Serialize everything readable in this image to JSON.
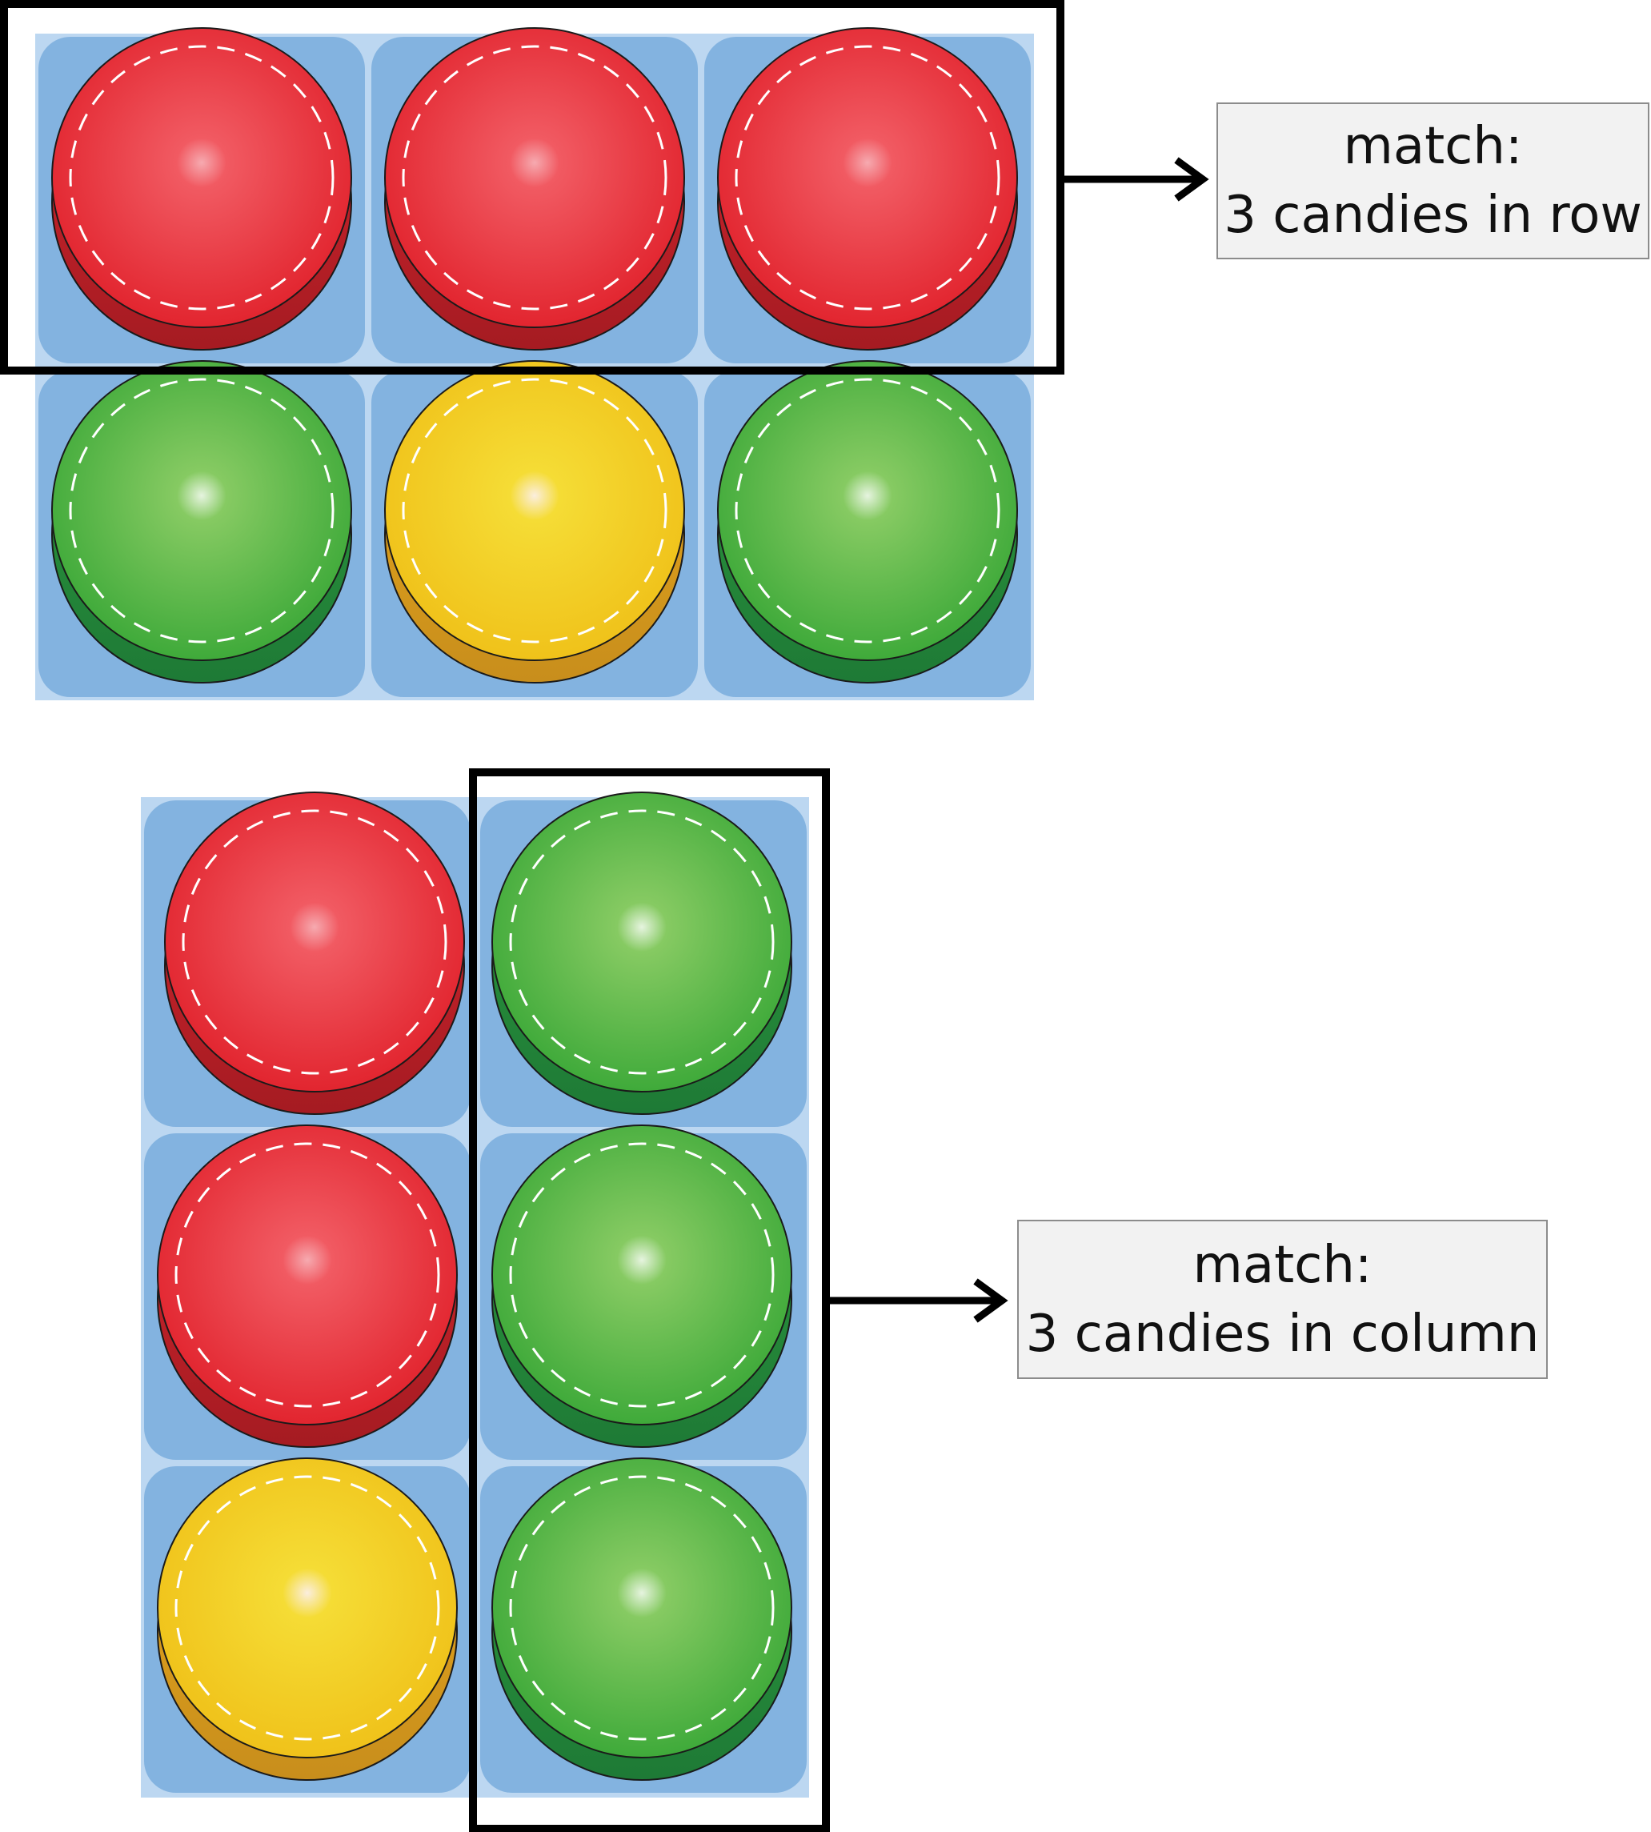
{
  "colors": {
    "board_background": "#bcd7f1",
    "cell": "#83b3e0",
    "frame": "#000000",
    "red": "#ee3b43",
    "green": "#5cbd45",
    "yellow": "#f2d41f"
  },
  "row_example": {
    "board": [
      [
        "red",
        "red",
        "red"
      ],
      [
        "green",
        "yellow",
        "green"
      ]
    ],
    "highlight": "row 1",
    "label": {
      "line1": "match:",
      "line2": "3 candies in row"
    }
  },
  "column_example": {
    "board": [
      [
        "red",
        "green"
      ],
      [
        "red",
        "green"
      ],
      [
        "yellow",
        "green"
      ]
    ],
    "highlight": "column 2",
    "label": {
      "line1": "match:",
      "line2": "3 candies in column"
    }
  }
}
